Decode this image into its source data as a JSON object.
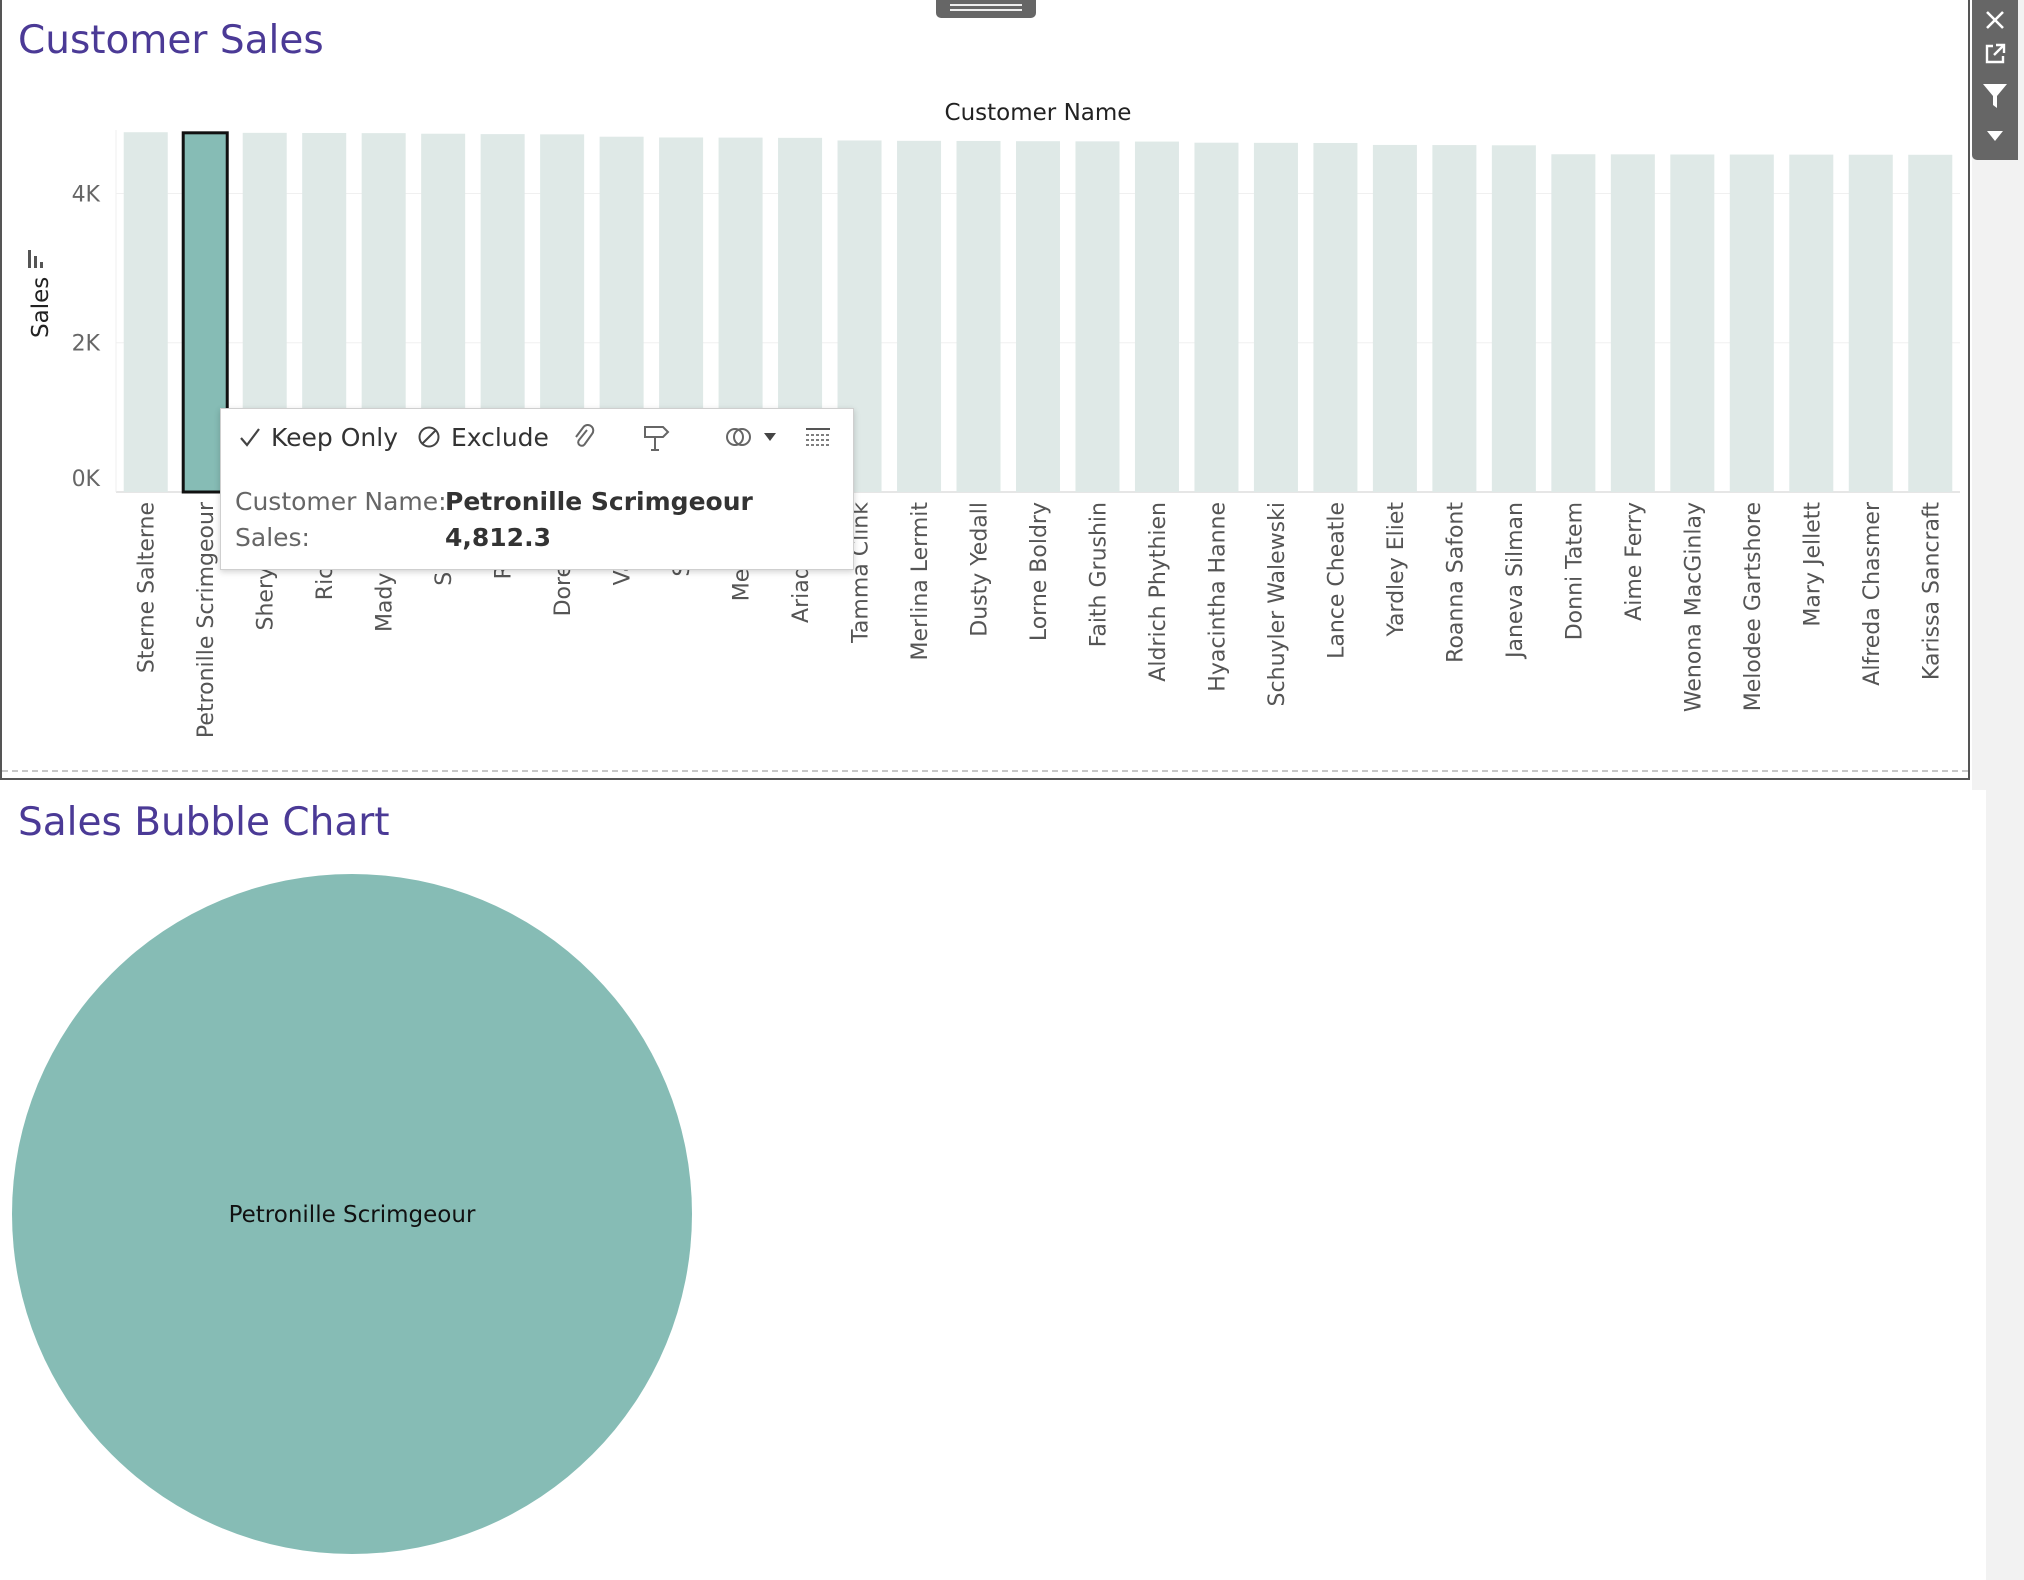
{
  "dashboard": {
    "top_sheet_title": "Customer Sales",
    "bottom_sheet_title": "Sales Bubble Chart"
  },
  "toolbar": {
    "icons": [
      "close-icon",
      "popout-icon",
      "filter-icon",
      "dropdown-arrow-icon"
    ]
  },
  "tooltip": {
    "keep_only_label": "Keep Only",
    "exclude_label": "Exclude",
    "customer_name_label": "Customer Name:",
    "customer_name_value": "Petronille Scrimgeour",
    "sales_label": "Sales:",
    "sales_value": "4,812.3"
  },
  "colors": {
    "bar_default": "#dfe9e7",
    "bar_selected": "#86bcb5",
    "title": "#4b3a96",
    "bubble": "#86bcb5"
  },
  "chart_data": [
    {
      "type": "bar",
      "title": "Customer Sales",
      "xlabel": "Customer Name",
      "ylabel": "Sales",
      "yticks": [
        "0K",
        "2K",
        "4K"
      ],
      "ylim": [
        0,
        4850
      ],
      "selected_category": "Petronille Scrimgeour",
      "categories": [
        "Sterne Salterne",
        "Petronille Scrimgeour",
        "Sherye Chri",
        "Richie Br",
        "Mady McMe",
        "Susette",
        "Renato",
        "Doreen So",
        "Vale No",
        "Sheela",
        "Merwin F",
        "Ariadne Co",
        "Tamma Clink",
        "Merlina Lermit",
        "Dusty Yedall",
        "Lorne Boldry",
        "Faith Grushin",
        "Aldrich Phythien",
        "Hyacintha Hanne",
        "Schuyler Walewski",
        "Lance Cheatle",
        "Yardley Eliet",
        "Roanna Safont",
        "Janeva Silman",
        "Donni Tatem",
        "Aime Ferry",
        "Wenona MacGinlay",
        "Melodee Gartshore",
        "Mary Jellett",
        "Alfreda Chasmer",
        "Karissa Sancraft"
      ],
      "values": [
        4820,
        4812.3,
        4812,
        4810,
        4808,
        4800,
        4795,
        4792,
        4760,
        4750,
        4748,
        4745,
        4710,
        4705,
        4703,
        4700,
        4698,
        4695,
        4680,
        4678,
        4676,
        4650,
        4648,
        4645,
        4525,
        4524,
        4522,
        4521,
        4520,
        4519,
        4518
      ]
    },
    {
      "type": "bubble",
      "title": "Sales Bubble Chart",
      "bubbles": [
        {
          "label": "Petronille Scrimgeour",
          "value": 4812.3
        }
      ]
    }
  ]
}
